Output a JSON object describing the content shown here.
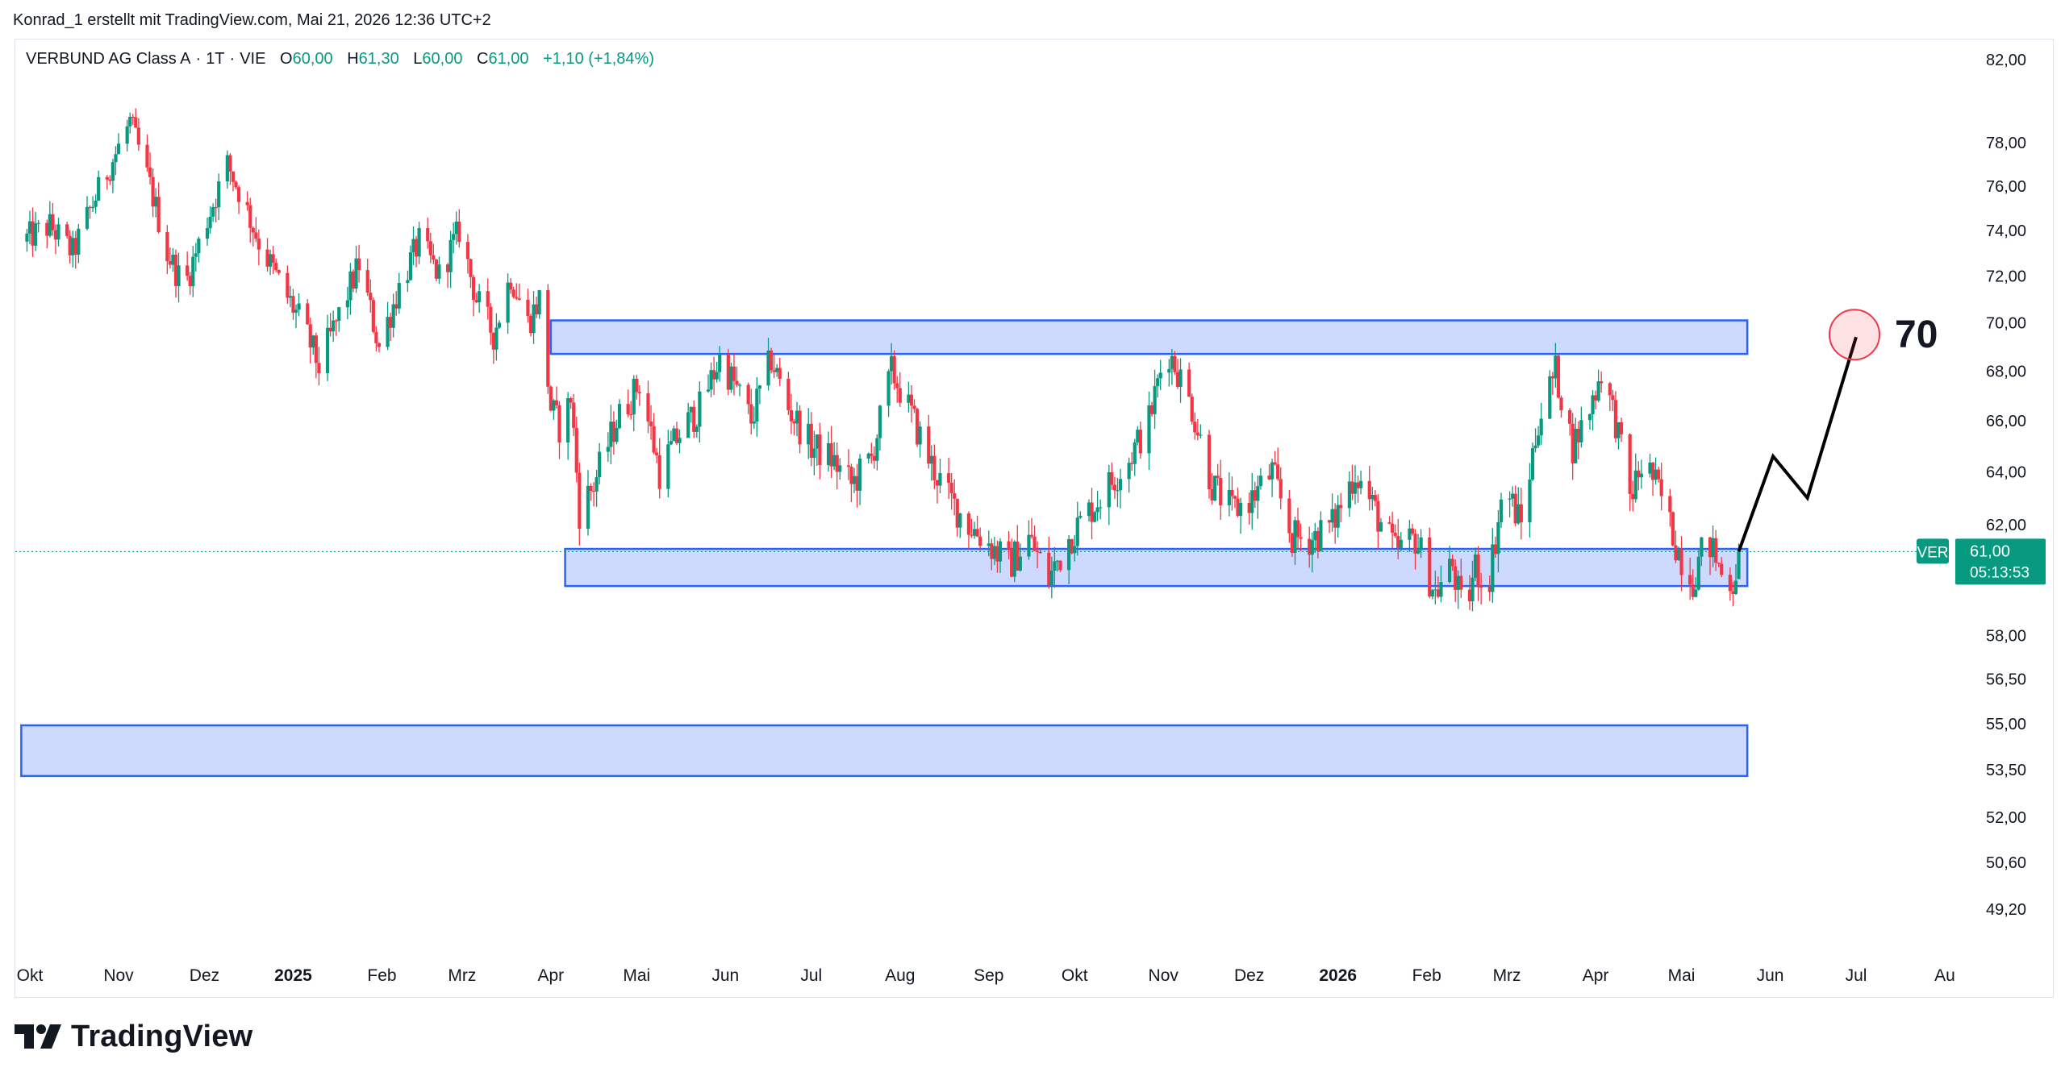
{
  "attribution": "Konrad_1 erstellt mit TradingView.com, Mai 21, 2026 12:36 UTC+2",
  "legend": {
    "symbol": "VERBUND AG Class A",
    "interval": "1T",
    "exchange": "VIE",
    "o_label": "O",
    "o_value": "60,00",
    "h_label": "H",
    "h_value": "61,30",
    "l_label": "L",
    "l_value": "60,00",
    "c_label": "C",
    "c_value": "61,00",
    "change": "+1,10 (+1,84%)"
  },
  "price_tag": {
    "ticker": "VER",
    "price": "61,00",
    "countdown": "05:13:53"
  },
  "target_label": "70",
  "brand": "TradingView",
  "colors": {
    "up": "#089981",
    "down": "#f23645",
    "zone_fill": "#cdd9fd",
    "zone_stroke": "#2962ff",
    "target_circle": "#f23645"
  },
  "chart_data": {
    "type": "candlestick",
    "y_axis_ticks": [
      "82,00",
      "78,00",
      "76,00",
      "74,00",
      "72,00",
      "70,00",
      "68,00",
      "66,00",
      "64,00",
      "62,00",
      "58,00",
      "56,50",
      "55,00",
      "53,50",
      "52,00",
      "50,60",
      "49,20"
    ],
    "y_axis_values": [
      82,
      78,
      76,
      74,
      72,
      70,
      68,
      66,
      64,
      62,
      58,
      56.5,
      55,
      53.5,
      52,
      50.6,
      49.2
    ],
    "x_axis_ticks": [
      "Okt",
      "Nov",
      "Dez",
      "2025",
      "Feb",
      "Mrz",
      "Apr",
      "Mai",
      "Jun",
      "Jul",
      "Aug",
      "Sep",
      "Okt",
      "Nov",
      "Dez",
      "2026",
      "Feb",
      "Mrz",
      "Apr",
      "Mai",
      "Jun",
      "Jul",
      "Au"
    ],
    "x_axis_bold": [
      "2025",
      "2026"
    ],
    "x_axis_dates": [
      "2024-10-01",
      "2024-11-01",
      "2024-12-01",
      "2025-01-01",
      "2025-02-01",
      "2025-03-01",
      "2025-04-01",
      "2025-05-01",
      "2025-06-01",
      "2025-07-01",
      "2025-08-01",
      "2025-09-01",
      "2025-10-01",
      "2025-11-01",
      "2025-12-01",
      "2026-01-01",
      "2026-02-01",
      "2026-03-01",
      "2026-04-01",
      "2026-05-01",
      "2026-06-01",
      "2026-07-01",
      "2026-08-01"
    ],
    "last_price": 61.0,
    "price_path": [
      [
        "2024-09-28",
        73.5
      ],
      [
        "2024-10-08",
        74.2
      ],
      [
        "2024-10-16",
        73.0
      ],
      [
        "2024-10-24",
        75.5
      ],
      [
        "2024-10-31",
        77.5
      ],
      [
        "2024-11-05",
        79.0
      ],
      [
        "2024-11-12",
        76.0
      ],
      [
        "2024-11-18",
        73.0
      ],
      [
        "2024-11-24",
        71.5
      ],
      [
        "2024-12-02",
        74.5
      ],
      [
        "2024-12-09",
        77.0
      ],
      [
        "2024-12-14",
        75.5
      ],
      [
        "2024-12-20",
        73.5
      ],
      [
        "2024-12-28",
        71.5
      ],
      [
        "2025-01-04",
        70.0
      ],
      [
        "2025-01-10",
        68.2
      ],
      [
        "2025-01-16",
        70.0
      ],
      [
        "2025-01-24",
        72.5
      ],
      [
        "2025-01-31",
        69.0
      ],
      [
        "2025-02-07",
        71.5
      ],
      [
        "2025-02-14",
        73.5
      ],
      [
        "2025-02-21",
        72.0
      ],
      [
        "2025-02-28",
        74.0
      ],
      [
        "2025-03-06",
        71.0
      ],
      [
        "2025-03-12",
        69.5
      ],
      [
        "2025-03-18",
        72.0
      ],
      [
        "2025-03-24",
        70.0
      ],
      [
        "2025-03-28",
        71.0
      ],
      [
        "2025-04-01",
        66.5
      ],
      [
        "2025-04-05",
        65.5
      ],
      [
        "2025-04-08",
        67.0
      ],
      [
        "2025-04-11",
        62.5
      ],
      [
        "2025-04-16",
        63.5
      ],
      [
        "2025-04-24",
        66.0
      ],
      [
        "2025-05-02",
        67.5
      ],
      [
        "2025-05-09",
        64.0
      ],
      [
        "2025-05-16",
        65.5
      ],
      [
        "2025-05-23",
        66.5
      ],
      [
        "2025-05-30",
        68.5
      ],
      [
        "2025-06-04",
        67.5
      ],
      [
        "2025-06-10",
        66.0
      ],
      [
        "2025-06-17",
        68.5
      ],
      [
        "2025-06-23",
        66.5
      ],
      [
        "2025-07-01",
        65.0
      ],
      [
        "2025-07-08",
        64.5
      ],
      [
        "2025-07-15",
        63.5
      ],
      [
        "2025-07-22",
        64.5
      ],
      [
        "2025-07-29",
        68.0
      ],
      [
        "2025-08-04",
        66.5
      ],
      [
        "2025-08-11",
        64.5
      ],
      [
        "2025-08-18",
        63.0
      ],
      [
        "2025-08-25",
        62.0
      ],
      [
        "2025-09-01",
        61.3
      ],
      [
        "2025-09-08",
        60.5
      ],
      [
        "2025-09-15",
        61.5
      ],
      [
        "2025-09-22",
        60.0
      ],
      [
        "2025-09-29",
        61.5
      ],
      [
        "2025-10-06",
        62.5
      ],
      [
        "2025-10-13",
        63.5
      ],
      [
        "2025-10-20",
        64.5
      ],
      [
        "2025-10-27",
        66.0
      ],
      [
        "2025-11-02",
        69.0
      ],
      [
        "2025-11-06",
        68.0
      ],
      [
        "2025-11-11",
        66.5
      ],
      [
        "2025-11-18",
        63.5
      ],
      [
        "2025-11-25",
        62.5
      ],
      [
        "2025-12-02",
        63.0
      ],
      [
        "2025-12-09",
        64.0
      ],
      [
        "2025-12-16",
        61.5
      ],
      [
        "2025-12-23",
        61.5
      ],
      [
        "2025-12-30",
        62.0
      ],
      [
        "2026-01-07",
        64.0
      ],
      [
        "2026-01-14",
        62.5
      ],
      [
        "2026-01-21",
        61.0
      ],
      [
        "2026-01-28",
        61.5
      ],
      [
        "2026-02-04",
        59.5
      ],
      [
        "2026-02-10",
        60.5
      ],
      [
        "2026-02-14",
        58.5
      ],
      [
        "2026-02-18",
        60.5
      ],
      [
        "2026-02-22",
        59.5
      ],
      [
        "2026-02-28",
        63.5
      ],
      [
        "2026-03-06",
        62.0
      ],
      [
        "2026-03-12",
        66.0
      ],
      [
        "2026-03-18",
        68.0
      ],
      [
        "2026-03-24",
        65.0
      ],
      [
        "2026-03-30",
        66.5
      ],
      [
        "2026-04-03",
        68.0
      ],
      [
        "2026-04-08",
        66.0
      ],
      [
        "2026-04-13",
        63.0
      ],
      [
        "2026-04-18",
        64.5
      ],
      [
        "2026-04-24",
        63.0
      ],
      [
        "2026-04-30",
        61.0
      ],
      [
        "2026-05-05",
        60.0
      ],
      [
        "2026-05-10",
        61.5
      ],
      [
        "2026-05-15",
        60.2
      ],
      [
        "2026-05-19",
        59.9
      ],
      [
        "2026-05-21",
        61.0
      ]
    ],
    "zones": [
      {
        "from": "2025-04-01",
        "to": "2026-05-24",
        "low": 68.7,
        "high": 70.1
      },
      {
        "from": "2025-04-06",
        "to": "2026-05-24",
        "low": 59.75,
        "high": 61.1
      },
      {
        "from": "2024-09-28",
        "to": "2026-05-24",
        "low": 53.3,
        "high": 54.95
      }
    ],
    "projection": [
      {
        "date": "2026-05-21",
        "price": 61.0
      },
      {
        "date": "2026-06-02",
        "price": 64.6
      },
      {
        "date": "2026-06-14",
        "price": 63.0
      },
      {
        "date": "2026-07-01",
        "price": 69.4
      }
    ],
    "target": {
      "date": "2026-07-01",
      "price": 69.4,
      "label": "70"
    }
  }
}
